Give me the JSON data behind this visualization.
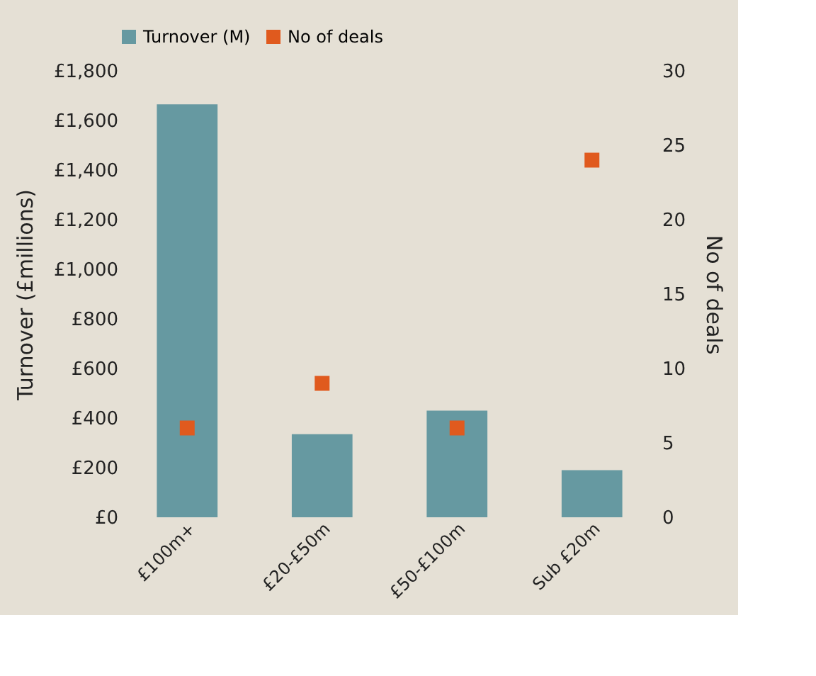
{
  "chart_data": {
    "type": "bar",
    "categories": [
      "£100m+",
      "£20-£50m",
      "£50-£100m",
      "Sub £20m"
    ],
    "ylabel": "Turnover (£millions)",
    "y2label": "No of deals",
    "series": [
      {
        "name": "Turnover (M)",
        "color": "#6699a1",
        "values": [
          1665,
          335,
          430,
          190
        ]
      },
      {
        "name": "No of deals",
        "type": "scatter",
        "axis": "y2",
        "color": "#e05a1e",
        "values": [
          6,
          9,
          6,
          24
        ]
      }
    ],
    "ylim": [
      0,
      1800
    ],
    "yticks": [
      {
        "value": 0,
        "label": "£0"
      },
      {
        "value": 200,
        "label": "£200"
      },
      {
        "value": 400,
        "label": "£400"
      },
      {
        "value": 600,
        "label": "£600"
      },
      {
        "value": 800,
        "label": "£800"
      },
      {
        "value": 1000,
        "label": "£1,000"
      },
      {
        "value": 1200,
        "label": "£1,200"
      },
      {
        "value": 1400,
        "label": "£1,400"
      },
      {
        "value": 1600,
        "label": "£1,600"
      },
      {
        "value": 1800,
        "label": "£1,800"
      }
    ],
    "y2lim": [
      0,
      30
    ],
    "y2ticks": [
      0,
      5,
      10,
      15,
      20,
      25,
      30
    ],
    "marker": "square",
    "legend": "top",
    "grid": false
  }
}
